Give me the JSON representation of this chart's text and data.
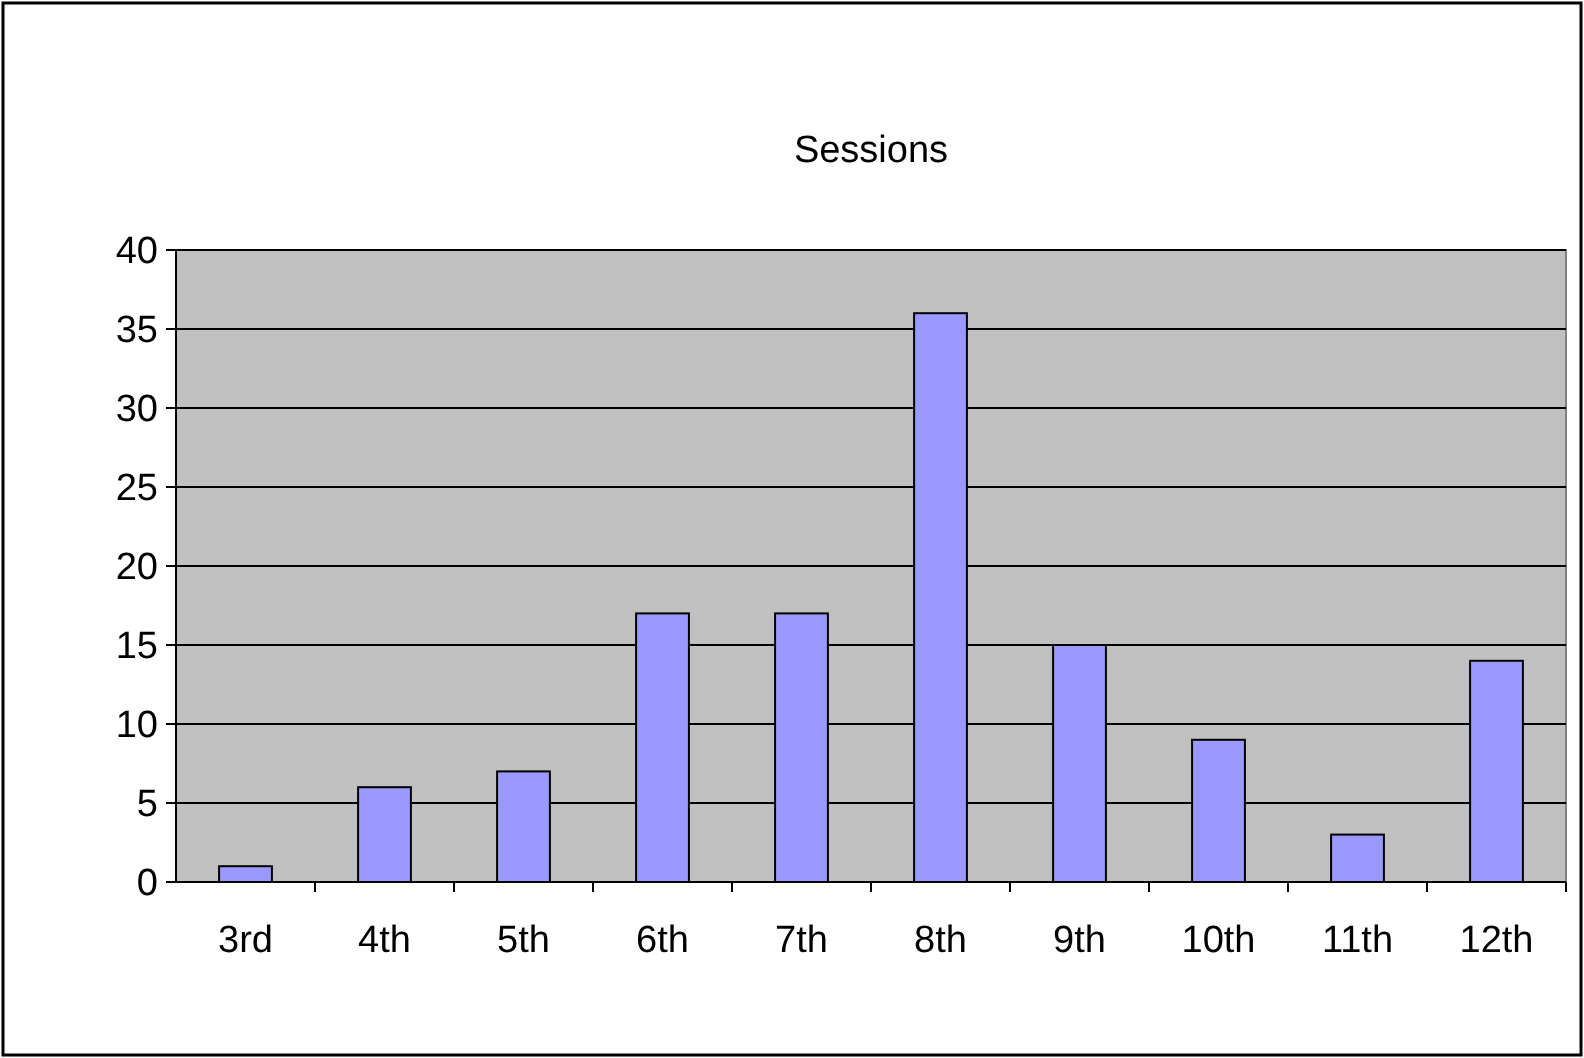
{
  "chart_data": {
    "type": "bar",
    "title": "Sessions",
    "categories": [
      "3rd",
      "4th",
      "5th",
      "6th",
      "7th",
      "8th",
      "9th",
      "10th",
      "11th",
      "12th"
    ],
    "values": [
      1,
      6,
      7,
      17,
      17,
      36,
      15,
      9,
      3,
      14
    ],
    "color": "#9999ff",
    "ylim": [
      0,
      40
    ],
    "yticks": [
      0,
      5,
      10,
      15,
      20,
      25,
      30,
      35,
      40
    ],
    "grid": "y"
  }
}
